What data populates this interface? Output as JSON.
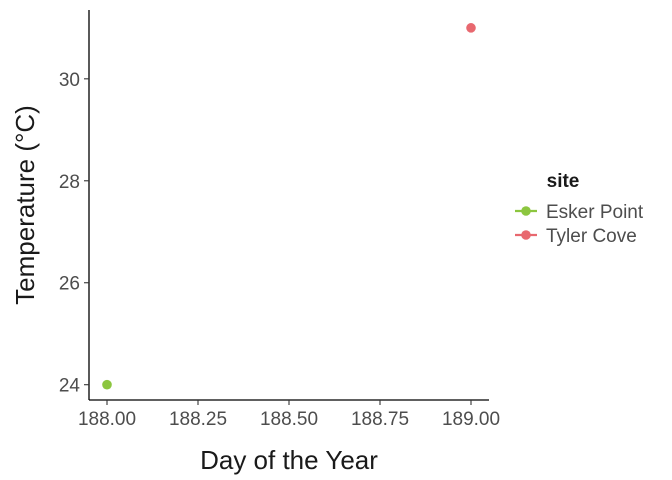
{
  "chart_data": {
    "type": "scatter",
    "xlabel": "Day of the Year",
    "ylabel": "Temperature (°C)",
    "xlim": [
      188.0,
      189.0
    ],
    "ylim": [
      23.7,
      31.35
    ],
    "x_ticks": [
      "188.00",
      "188.25",
      "188.50",
      "188.75",
      "189.00"
    ],
    "x_tick_values": [
      188.0,
      188.25,
      188.5,
      188.75,
      189.0
    ],
    "y_ticks": [
      "24",
      "26",
      "28",
      "30"
    ],
    "y_tick_values": [
      24,
      26,
      28,
      30
    ],
    "grid": false,
    "legend": {
      "title": "site",
      "placement": "right"
    },
    "series": [
      {
        "name": "Esker Point",
        "color": "#8cc63f",
        "points": [
          {
            "x": 188.0,
            "y": 24.0
          }
        ]
      },
      {
        "name": "Tyler Cove",
        "color": "#e8686f",
        "points": [
          {
            "x": 189.0,
            "y": 31.0
          }
        ]
      }
    ]
  }
}
